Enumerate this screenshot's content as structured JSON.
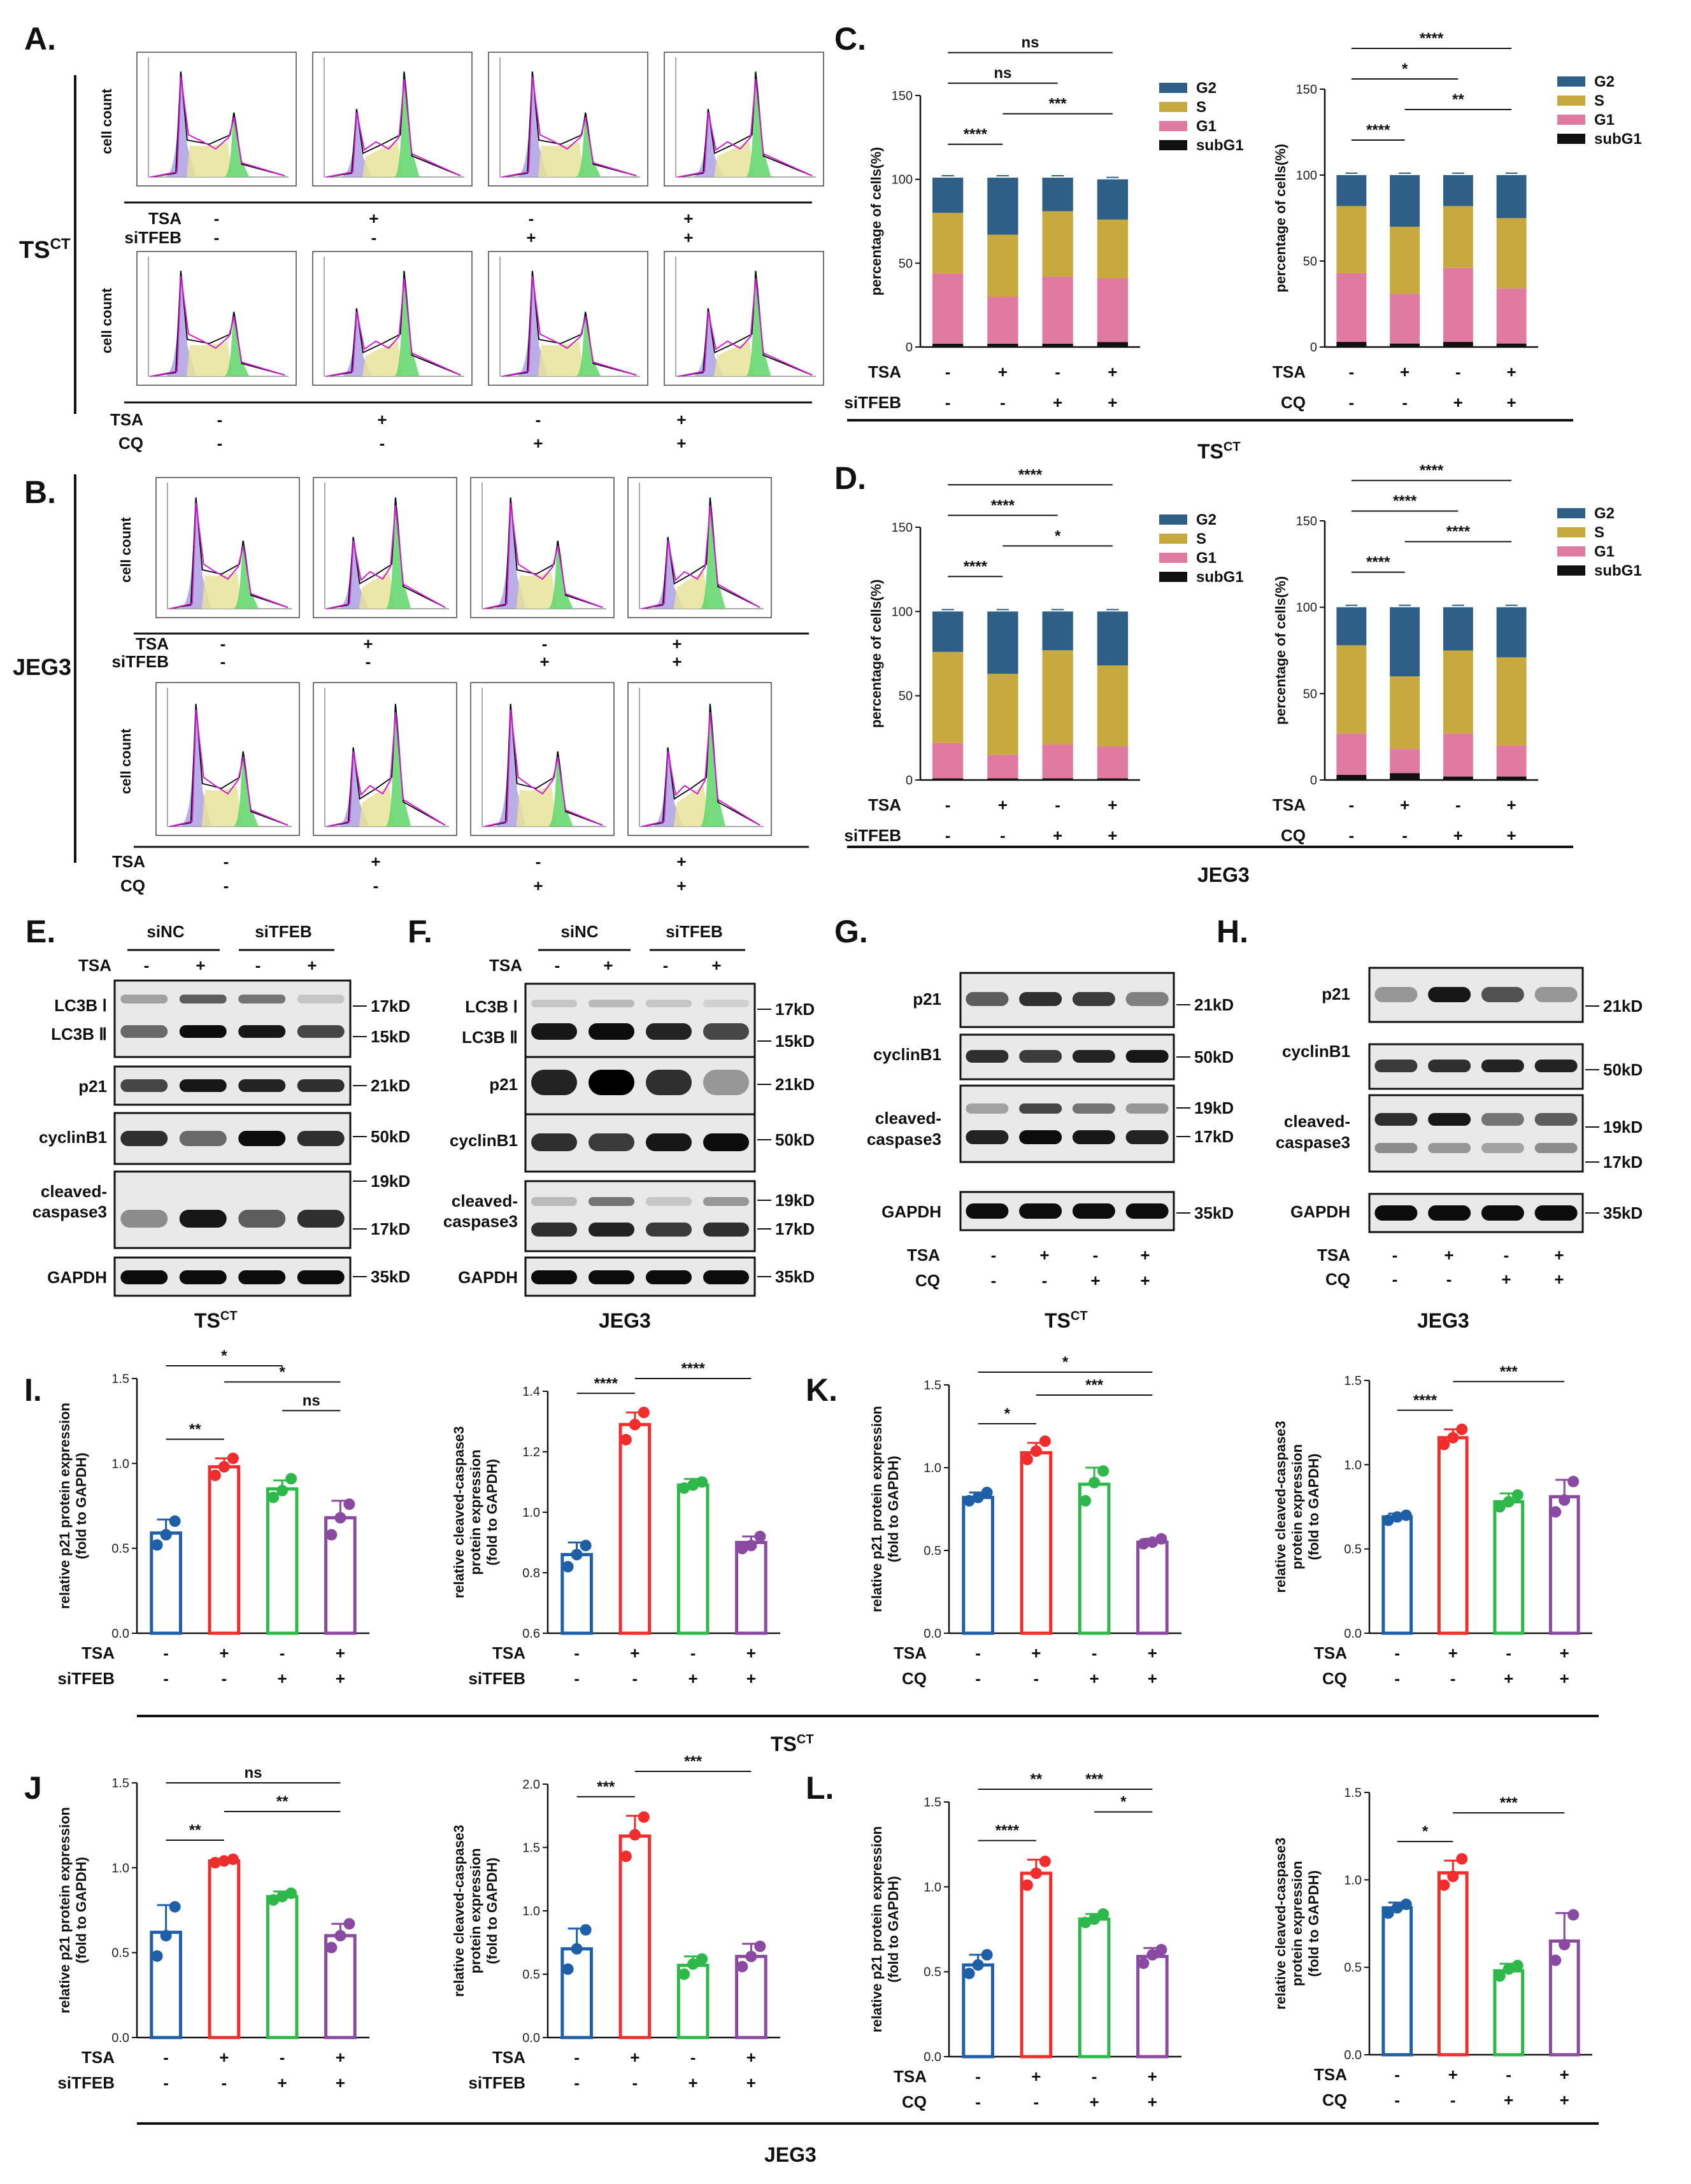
{
  "colors": {
    "G2": "#2f5f86",
    "S": "#c8a93e",
    "G1": "#e07aa0",
    "subG1": "#111111",
    "blue": "#1f5fa8",
    "red": "#ef2d2d",
    "green": "#2fb84a",
    "purple": "#8b4aa2"
  },
  "panels": {
    "A": "A.",
    "B": "B.",
    "C": "C.",
    "D": "D.",
    "E": "E.",
    "F": "F.",
    "G": "G.",
    "H": "H.",
    "I": "I.",
    "J": "J",
    "K": "K.",
    "L": "L."
  },
  "cells": {
    "ts": "TS",
    "ts_sup": "CT",
    "jeg3": "JEG3"
  },
  "flow": {
    "ylabel": "cell count",
    "treatments": {
      "TSA": "TSA",
      "siTFEB": "siTFEB",
      "CQ": "CQ"
    },
    "signs": {
      "TSA": [
        "-",
        "+",
        "-",
        "+"
      ],
      "second": [
        "-",
        "-",
        "+",
        "+"
      ]
    }
  },
  "bar_charts": {
    "tick_sign_tsa": [
      "-",
      "+",
      "-",
      "+"
    ],
    "tick_sign_second": [
      "-",
      "-",
      "+",
      "+"
    ]
  },
  "blots": {
    "siNC": "siNC",
    "siTFEB": "siTFEB",
    "TSA": "TSA",
    "tsa_signs": [
      "-",
      "+",
      "-",
      "+"
    ],
    "CQ": "CQ",
    "cq_signs": [
      "-",
      "-",
      "+",
      "+"
    ],
    "rows": {
      "lc3b_1": "LC3B Ⅰ",
      "lc3b_2": "LC3B Ⅱ",
      "p21": "p21",
      "cyclinb1": "cyclinB1",
      "cleaved1": "cleaved-",
      "cleaved2": "caspase3",
      "gapdh": "GAPDH"
    },
    "kd": {
      "k17": "17kD",
      "k15": "15kD",
      "k21": "21kD",
      "k50": "50kD",
      "k19": "19kD",
      "k35": "35kD"
    }
  },
  "chart_data": [
    {
      "id": "C1",
      "type": "bar",
      "stacked": true,
      "title": "",
      "ylabel": "percentage of cells(%)",
      "ylim": [
        0,
        150
      ],
      "yticks": [
        0,
        50,
        100,
        150
      ],
      "categories": [
        "1",
        "2",
        "3",
        "4"
      ],
      "row_labels": [
        "TSA",
        "siTFEB"
      ],
      "series": [
        {
          "name": "subG1",
          "values": [
            2,
            2,
            2,
            3
          ]
        },
        {
          "name": "G1",
          "values": [
            42,
            28,
            40,
            38
          ]
        },
        {
          "name": "S",
          "values": [
            36,
            37,
            39,
            35
          ]
        },
        {
          "name": "G2",
          "values": [
            21,
            34,
            20,
            24
          ]
        }
      ],
      "legend": [
        "G2",
        "S",
        "G1",
        "subG1"
      ],
      "sig": [
        {
          "label": "****",
          "from": 1,
          "to": 2
        },
        {
          "label": "***",
          "from": 2,
          "to": 4
        },
        {
          "label": "ns",
          "from": 1,
          "to": 3
        },
        {
          "label": "ns",
          "from": 1,
          "to": 4
        }
      ]
    },
    {
      "id": "C2",
      "type": "bar",
      "stacked": true,
      "title": "",
      "ylabel": "percentage of cells(%)",
      "ylim": [
        0,
        150
      ],
      "yticks": [
        0,
        50,
        100,
        150
      ],
      "categories": [
        "1",
        "2",
        "3",
        "4"
      ],
      "row_labels": [
        "TSA",
        "CQ"
      ],
      "series": [
        {
          "name": "subG1",
          "values": [
            3,
            2,
            3,
            2
          ]
        },
        {
          "name": "G1",
          "values": [
            40,
            29,
            43,
            32
          ]
        },
        {
          "name": "S",
          "values": [
            39,
            39,
            36,
            41
          ]
        },
        {
          "name": "G2",
          "values": [
            18,
            30,
            18,
            25
          ]
        }
      ],
      "legend": [
        "G2",
        "S",
        "G1",
        "subG1"
      ],
      "sig": [
        {
          "label": "****",
          "from": 1,
          "to": 2
        },
        {
          "label": "**",
          "from": 2,
          "to": 4
        },
        {
          "label": "*",
          "from": 1,
          "to": 3
        },
        {
          "label": "****",
          "from": 1,
          "to": 4
        }
      ]
    },
    {
      "id": "D1",
      "type": "bar",
      "stacked": true,
      "title": "",
      "ylabel": "percentage of cells(%)",
      "ylim": [
        0,
        150
      ],
      "yticks": [
        0,
        50,
        100,
        150
      ],
      "categories": [
        "1",
        "2",
        "3",
        "4"
      ],
      "row_labels": [
        "TSA",
        "siTFEB"
      ],
      "series": [
        {
          "name": "subG1",
          "values": [
            1,
            1,
            1,
            1
          ]
        },
        {
          "name": "G1",
          "values": [
            21,
            14,
            20,
            19
          ]
        },
        {
          "name": "S",
          "values": [
            54,
            48,
            56,
            48
          ]
        },
        {
          "name": "G2",
          "values": [
            24,
            37,
            23,
            32
          ]
        }
      ],
      "legend": [
        "G2",
        "S",
        "G1",
        "subG1"
      ],
      "sig": [
        {
          "label": "****",
          "from": 1,
          "to": 2
        },
        {
          "label": "*",
          "from": 2,
          "to": 4
        },
        {
          "label": "****",
          "from": 1,
          "to": 3
        },
        {
          "label": "****",
          "from": 1,
          "to": 4
        }
      ]
    },
    {
      "id": "D2",
      "type": "bar",
      "stacked": true,
      "title": "",
      "ylabel": "percentage of cells(%)",
      "ylim": [
        0,
        150
      ],
      "yticks": [
        0,
        50,
        100,
        150
      ],
      "categories": [
        "1",
        "2",
        "3",
        "4"
      ],
      "row_labels": [
        "TSA",
        "CQ"
      ],
      "series": [
        {
          "name": "subG1",
          "values": [
            3,
            4,
            2,
            2
          ]
        },
        {
          "name": "G1",
          "values": [
            24,
            14,
            25,
            18
          ]
        },
        {
          "name": "S",
          "values": [
            51,
            42,
            48,
            51
          ]
        },
        {
          "name": "G2",
          "values": [
            22,
            40,
            25,
            29
          ]
        }
      ],
      "legend": [
        "G2",
        "S",
        "G1",
        "subG1"
      ],
      "sig": [
        {
          "label": "****",
          "from": 1,
          "to": 2
        },
        {
          "label": "****",
          "from": 2,
          "to": 4
        },
        {
          "label": "****",
          "from": 1,
          "to": 3
        },
        {
          "label": "****",
          "from": 1,
          "to": 4
        }
      ]
    },
    {
      "id": "I1",
      "type": "bar",
      "ylabel": [
        "relative p21 protein expression",
        "(fold to GAPDH)"
      ],
      "ylim": [
        0,
        1.5
      ],
      "yticks": [
        "0.0",
        "0.5",
        "1.0",
        "1.5"
      ],
      "row_labels": [
        "TSA",
        "siTFEB"
      ],
      "values": [
        0.59,
        0.98,
        0.85,
        0.68
      ],
      "errors": [
        0.08,
        0.05,
        0.05,
        0.1
      ],
      "points": [
        [
          0.52,
          0.58,
          0.66
        ],
        [
          0.93,
          0.98,
          1.03
        ],
        [
          0.8,
          0.84,
          0.91
        ],
        [
          0.58,
          0.68,
          0.76
        ]
      ],
      "sig": [
        {
          "label": "**",
          "from": 1,
          "to": 2
        },
        {
          "label": "ns",
          "from": 3,
          "to": 4
        },
        {
          "label": "*",
          "from": 2,
          "to": 4
        },
        {
          "label": "*",
          "from": 1,
          "to": 3
        }
      ]
    },
    {
      "id": "I2",
      "type": "bar",
      "ylabel": [
        "relative cleaved-caspase3",
        "protein expression",
        "(fold to GAPDH)"
      ],
      "ylim": [
        0.6,
        1.4
      ],
      "yticks": [
        "0.6",
        "0.8",
        "1.0",
        "1.2",
        "1.4"
      ],
      "row_labels": [
        "TSA",
        "siTFEB"
      ],
      "values": [
        0.86,
        1.29,
        1.09,
        0.9
      ],
      "errors": [
        0.04,
        0.04,
        0.02,
        0.02
      ],
      "points": [
        [
          0.82,
          0.86,
          0.89
        ],
        [
          1.24,
          1.29,
          1.33
        ],
        [
          1.08,
          1.09,
          1.1
        ],
        [
          0.88,
          0.89,
          0.92
        ]
      ],
      "sig": [
        {
          "label": "****",
          "from": 1,
          "to": 2
        },
        {
          "label": "****",
          "from": 2,
          "to": 4
        }
      ]
    },
    {
      "id": "K1",
      "type": "bar",
      "ylabel": [
        "relative p21 protein expression",
        "(fold to GAPDH)"
      ],
      "ylim": [
        0,
        1.5
      ],
      "yticks": [
        "0.0",
        "0.5",
        "1.0",
        "1.5"
      ],
      "row_labels": [
        "TSA",
        "CQ"
      ],
      "values": [
        0.82,
        1.09,
        0.9,
        0.55
      ],
      "errors": [
        0.03,
        0.06,
        0.1,
        0.02
      ],
      "points": [
        [
          0.8,
          0.82,
          0.85
        ],
        [
          1.05,
          1.1,
          1.16
        ],
        [
          0.8,
          0.91,
          0.98
        ],
        [
          0.54,
          0.55,
          0.57
        ]
      ],
      "sig": [
        {
          "label": "*",
          "from": 1,
          "to": 2
        },
        {
          "label": "***",
          "from": 2,
          "to": 4
        },
        {
          "label": "*",
          "from": 1,
          "to": 4
        }
      ]
    },
    {
      "id": "K2",
      "type": "bar",
      "ylabel": [
        "relative cleaved-caspase3",
        "protein expression",
        "(fold to GAPDH)"
      ],
      "ylim": [
        0,
        1.5
      ],
      "yticks": [
        "0.0",
        "0.5",
        "1.0",
        "1.5"
      ],
      "row_labels": [
        "TSA",
        "CQ"
      ],
      "values": [
        0.69,
        1.16,
        0.78,
        0.81
      ],
      "errors": [
        0.02,
        0.05,
        0.05,
        0.1
      ],
      "points": [
        [
          0.67,
          0.69,
          0.7
        ],
        [
          1.12,
          1.16,
          1.21
        ],
        [
          0.75,
          0.78,
          0.82
        ],
        [
          0.72,
          0.79,
          0.9
        ]
      ],
      "sig": [
        {
          "label": "****",
          "from": 1,
          "to": 2
        },
        {
          "label": "***",
          "from": 2,
          "to": 4
        }
      ]
    },
    {
      "id": "J1",
      "type": "bar",
      "ylabel": [
        "relative p21 protein expression",
        "(fold to GAPDH)"
      ],
      "ylim": [
        0,
        1.5
      ],
      "yticks": [
        "0.0",
        "0.5",
        "1.0",
        "1.5"
      ],
      "row_labels": [
        "TSA",
        "siTFEB"
      ],
      "values": [
        0.62,
        1.04,
        0.83,
        0.6
      ],
      "errors": [
        0.16,
        0.01,
        0.03,
        0.07
      ],
      "points": [
        [
          0.48,
          0.6,
          0.77
        ],
        [
          1.03,
          1.04,
          1.05
        ],
        [
          0.81,
          0.83,
          0.85
        ],
        [
          0.53,
          0.6,
          0.67
        ]
      ],
      "sig": [
        {
          "label": "**",
          "from": 1,
          "to": 2
        },
        {
          "label": "**",
          "from": 2,
          "to": 4
        },
        {
          "label": "ns",
          "from": 1,
          "to": 4
        }
      ]
    },
    {
      "id": "J2",
      "type": "bar",
      "ylabel": [
        "relative cleaved-caspase3",
        "protein expression",
        "(fold to GAPDH)"
      ],
      "ylim": [
        0,
        2.0
      ],
      "yticks": [
        "0.0",
        "0.5",
        "1.0",
        "1.5",
        "2.0"
      ],
      "row_labels": [
        "TSA",
        "siTFEB"
      ],
      "values": [
        0.7,
        1.59,
        0.57,
        0.64
      ],
      "errors": [
        0.16,
        0.16,
        0.07,
        0.1
      ],
      "points": [
        [
          0.54,
          0.7,
          0.85
        ],
        [
          1.43,
          1.6,
          1.74
        ],
        [
          0.5,
          0.58,
          0.62
        ],
        [
          0.56,
          0.64,
          0.72
        ]
      ],
      "sig": [
        {
          "label": "***",
          "from": 1,
          "to": 2
        },
        {
          "label": "***",
          "from": 2,
          "to": 4
        }
      ]
    },
    {
      "id": "L1",
      "type": "bar",
      "ylabel": [
        "relative p21 protein expression",
        "(fold to GAPDH)"
      ],
      "ylim": [
        0,
        1.5
      ],
      "yticks": [
        "0.0",
        "0.5",
        "1.0",
        "1.5"
      ],
      "row_labels": [
        "TSA",
        "CQ"
      ],
      "values": [
        0.54,
        1.08,
        0.81,
        0.59
      ],
      "errors": [
        0.06,
        0.08,
        0.03,
        0.05
      ],
      "points": [
        [
          0.49,
          0.54,
          0.6
        ],
        [
          1.01,
          1.08,
          1.15
        ],
        [
          0.79,
          0.81,
          0.84
        ],
        [
          0.55,
          0.6,
          0.63
        ]
      ],
      "sig": [
        {
          "label": "****",
          "from": 1,
          "to": 2
        },
        {
          "label": "*",
          "from": 3,
          "to": 4
        },
        {
          "label": "***",
          "from": 2,
          "to": 4
        },
        {
          "label": "**",
          "from": 1,
          "to": 3
        }
      ]
    },
    {
      "id": "L2",
      "type": "bar",
      "ylabel": [
        "relative cleaved-caspase3",
        "protein expression",
        "(fold to GAPDH)"
      ],
      "ylim": [
        0,
        1.5
      ],
      "yticks": [
        "0.0",
        "0.5",
        "1.0",
        "1.5"
      ],
      "row_labels": [
        "TSA",
        "CQ"
      ],
      "values": [
        0.84,
        1.04,
        0.48,
        0.65
      ],
      "errors": [
        0.03,
        0.07,
        0.04,
        0.16
      ],
      "points": [
        [
          0.81,
          0.84,
          0.86
        ],
        [
          0.97,
          1.02,
          1.12
        ],
        [
          0.45,
          0.49,
          0.51
        ],
        [
          0.54,
          0.63,
          0.8
        ]
      ],
      "sig": [
        {
          "label": "*",
          "from": 1,
          "to": 2
        },
        {
          "label": "***",
          "from": 2,
          "to": 4
        }
      ]
    }
  ]
}
